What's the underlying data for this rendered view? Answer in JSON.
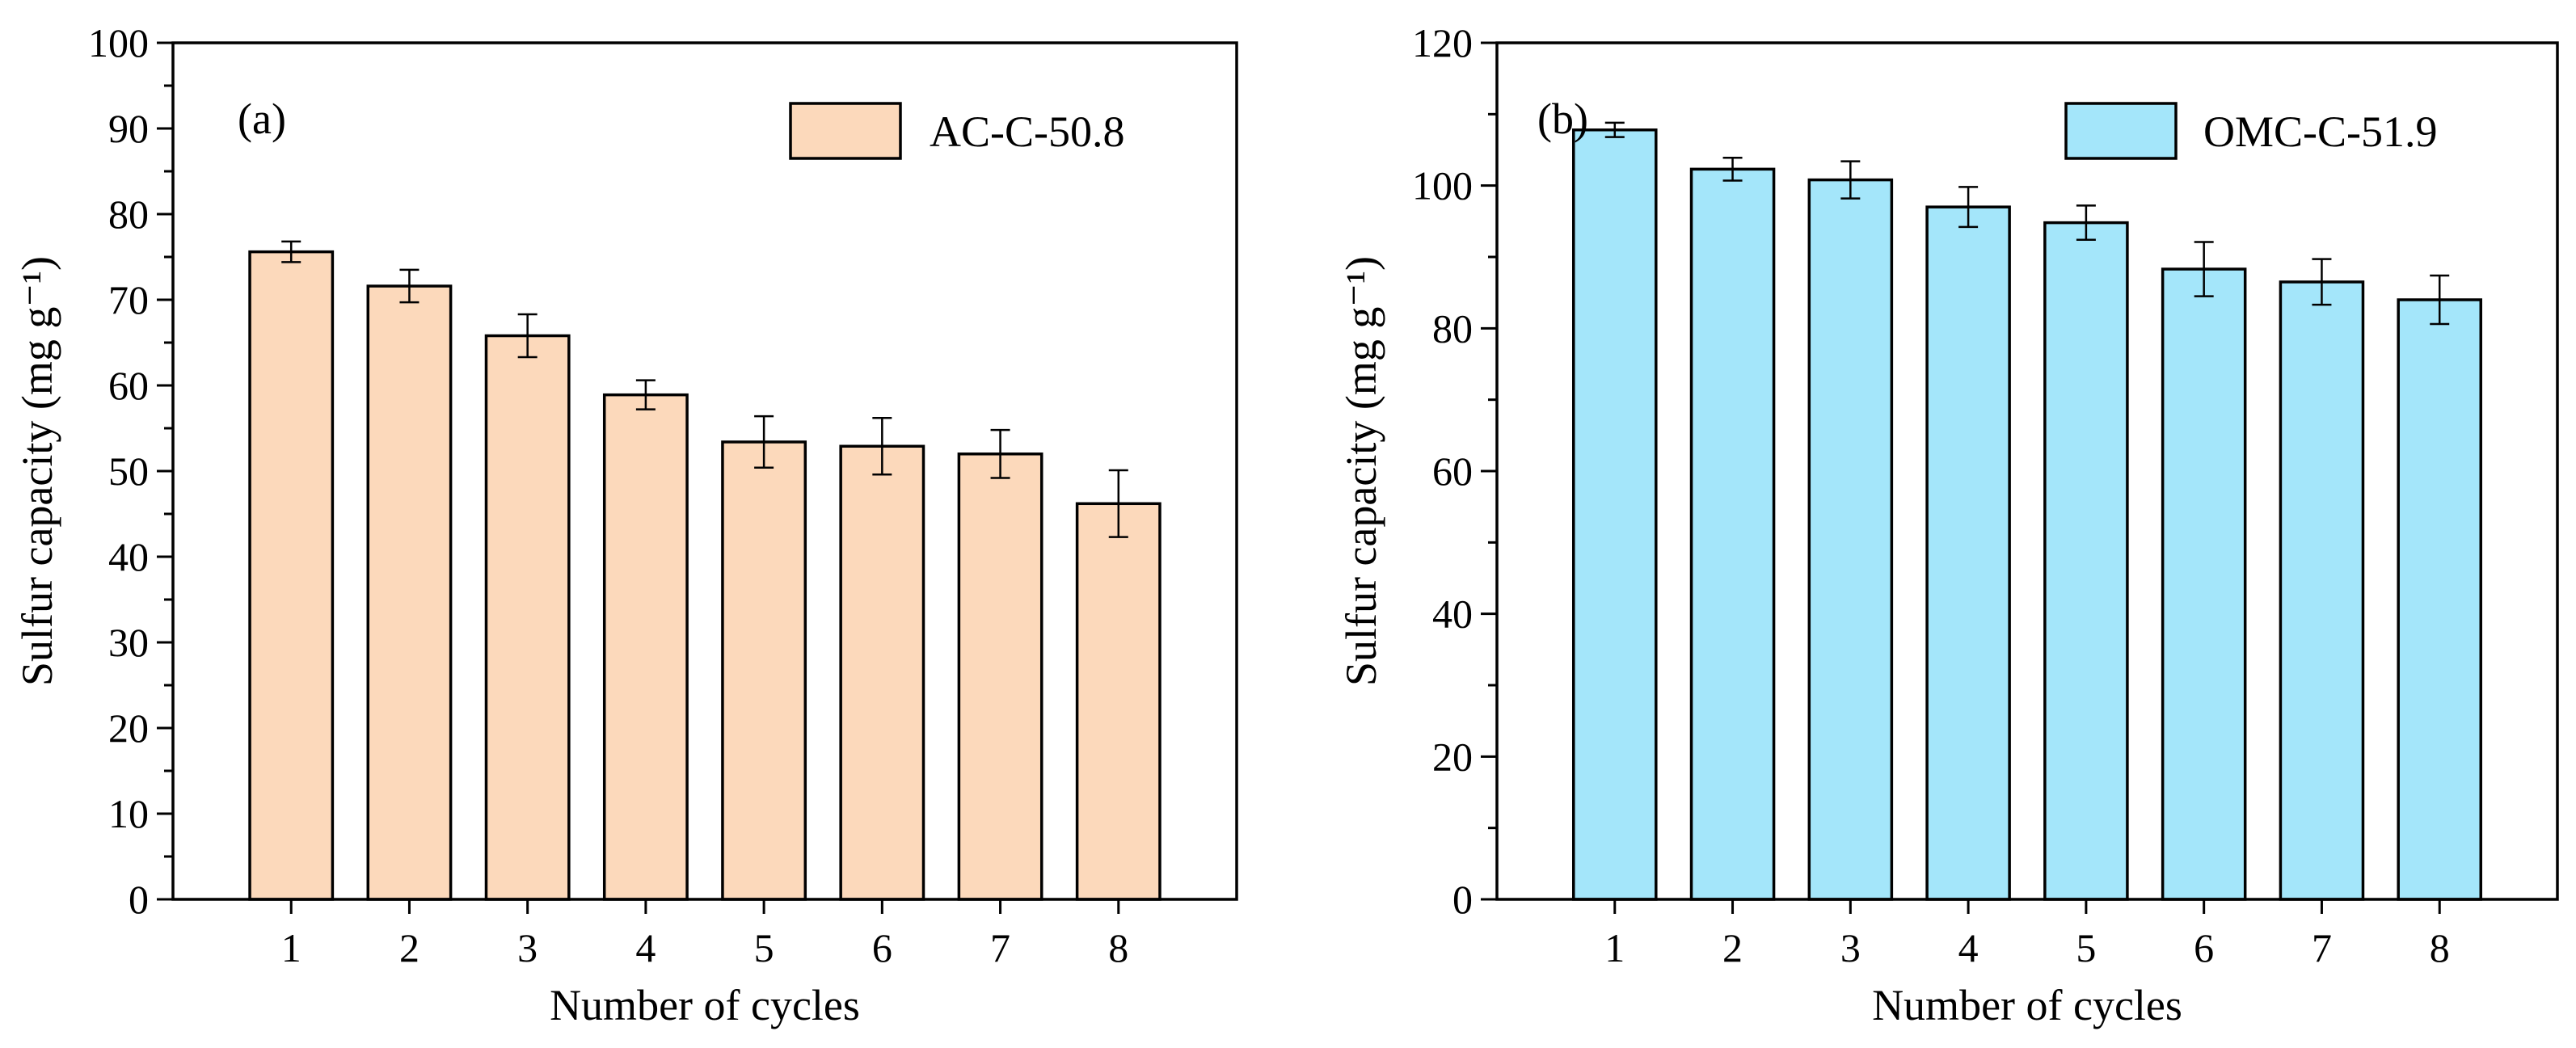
{
  "colors": {
    "panel_a_bar": "#fcd9bb",
    "panel_b_bar": "#a4e6fa",
    "axis": "#000000"
  },
  "chart_data": [
    {
      "type": "bar",
      "panel_label": "(a)",
      "categories": [
        "1",
        "2",
        "3",
        "4",
        "5",
        "6",
        "7",
        "8"
      ],
      "series": [
        {
          "name": "AC-C-50.8",
          "values": [
            75.6,
            71.6,
            65.8,
            58.9,
            53.4,
            52.9,
            52.0,
            46.2
          ],
          "errors": [
            1.2,
            1.9,
            2.5,
            1.7,
            3.0,
            3.3,
            2.8,
            3.9
          ]
        }
      ],
      "xlabel": "Number of cycles",
      "ylabel": "Sulfur capacity (mg g⁻¹)",
      "ylim": [
        0,
        100
      ],
      "yticks": [
        0,
        10,
        20,
        30,
        40,
        50,
        60,
        70,
        80,
        90,
        100
      ],
      "legend_position": "top-right",
      "grid": false
    },
    {
      "type": "bar",
      "panel_label": "(b)",
      "categories": [
        "1",
        "2",
        "3",
        "4",
        "5",
        "6",
        "7",
        "8"
      ],
      "series": [
        {
          "name": "OMC-C-51.9",
          "values": [
            107.8,
            102.3,
            100.8,
            97.0,
            94.8,
            88.3,
            86.5,
            84.0
          ],
          "errors": [
            1.0,
            1.6,
            2.6,
            2.8,
            2.4,
            3.8,
            3.2,
            3.4
          ]
        }
      ],
      "xlabel": "Number of cycles",
      "ylabel": "Sulfur capacity (mg g⁻¹)",
      "ylim": [
        0,
        120
      ],
      "yticks": [
        0,
        20,
        40,
        60,
        80,
        100,
        120
      ],
      "legend_position": "top-right",
      "grid": false
    }
  ]
}
